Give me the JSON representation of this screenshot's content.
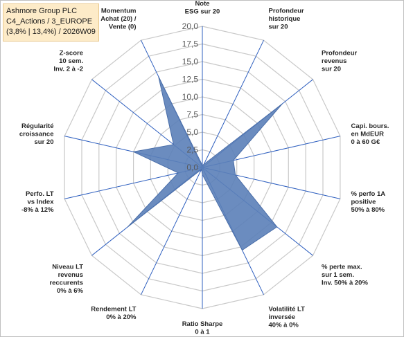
{
  "header": {
    "lines": [
      "Ashmore Group PLC",
      "C4_Actions / 3_EUROPE",
      "(3,8% | 13,4%) / 2026W09"
    ]
  },
  "colors": {
    "fill": "#5b7fb8",
    "stroke": "#4a6ea9",
    "spoke": "#2e5fbf",
    "grid": "#c8c8c8"
  },
  "chart_data": {
    "type": "radar",
    "rmax": 20,
    "tick_labels": [
      "0,0",
      "2,5",
      "5,0",
      "7,5",
      "10,0",
      "12,5",
      "15,0",
      "17,5",
      "20,0"
    ],
    "categories": [
      [
        "Note",
        "ESG sur 20"
      ],
      [
        "Profondeur",
        "historique",
        "sur 20"
      ],
      [
        "Profondeur",
        "revenus",
        "sur 20"
      ],
      [
        "Capi. bours.",
        "en MdEUR",
        "0 à 60 G€"
      ],
      [
        "% perfo 1A",
        "positive",
        "50% à 80%"
      ],
      [
        "% perte max.",
        "sur 1 sem.",
        "Inv. 50% à 20%"
      ],
      [
        "Volatilité LT",
        "inversée",
        "40% à 0%"
      ],
      [
        "Ratio Sharpe",
        "0 à 1"
      ],
      [
        "Rendement LT",
        "0% à 20%"
      ],
      [
        "Niveau LT",
        "revenus",
        "reccurents",
        "0% à 6%"
      ],
      [
        "Perfo. LT",
        "vs Index",
        "-8% à 12%"
      ],
      [
        "Régularité",
        "croissance",
        "sur 20"
      ],
      [
        "Z-score",
        "10 sem.",
        "Inv. 2 à -2"
      ],
      [
        "Momentum",
        "Achat (20) /",
        "Vente (0)"
      ]
    ],
    "values": [
      0.3,
      0.5,
      14.5,
      4.5,
      4.8,
      13.5,
      13.0,
      1.0,
      0.3,
      13.5,
      3.5,
      10.0,
      5.2,
      14.3
    ]
  }
}
